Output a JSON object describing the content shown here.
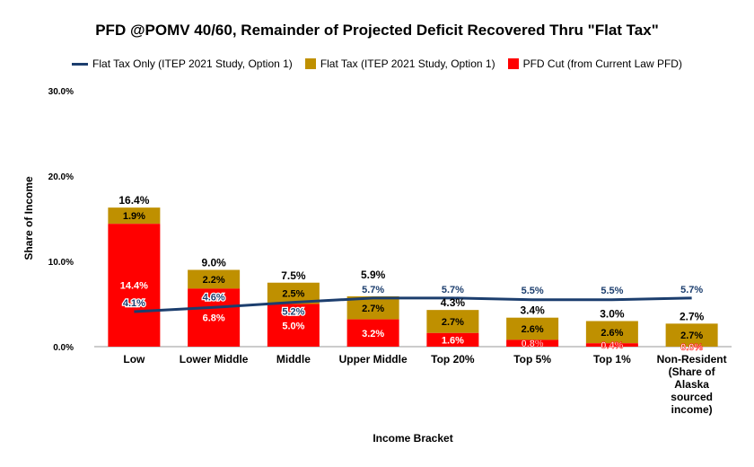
{
  "chart_data": {
    "type": "bar",
    "title": "PFD @POMV 40/60, Remainder of Projected Deficit Recovered Thru \"Flat Tax\"",
    "xlabel": "Income Bracket",
    "ylabel": "Share of Income",
    "ylim": [
      0,
      30
    ],
    "yticks": [
      "0.0%",
      "10.0%",
      "20.0%",
      "30.0%"
    ],
    "grid": false,
    "legend_position": "top",
    "categories": [
      "Low",
      "Lower Middle",
      "Middle",
      "Upper Middle",
      "Top 20%",
      "Top 5%",
      "Top 1%",
      "Non-Resident (Share of Alaska sourced income)"
    ],
    "series": [
      {
        "name": "Flat Tax Only (ITEP 2021 Study, Option 1)",
        "kind": "line",
        "color": "#1c3e6e",
        "values": [
          4.1,
          4.6,
          5.2,
          5.7,
          5.7,
          5.5,
          5.5,
          5.7
        ]
      },
      {
        "name": "Flat Tax (ITEP 2021 Study, Option 1)",
        "kind": "stacked-bar",
        "color": "#bf9000",
        "values": [
          1.9,
          2.2,
          2.5,
          2.7,
          2.7,
          2.6,
          2.6,
          2.7
        ]
      },
      {
        "name": "PFD Cut (from Current Law PFD)",
        "kind": "stacked-bar",
        "color": "#ff0000",
        "values": [
          14.4,
          6.8,
          5.0,
          3.2,
          1.6,
          0.8,
          0.4,
          0.0
        ]
      }
    ],
    "totals": [
      16.4,
      9.0,
      7.5,
      5.9,
      4.3,
      3.4,
      3.0,
      2.7
    ]
  }
}
